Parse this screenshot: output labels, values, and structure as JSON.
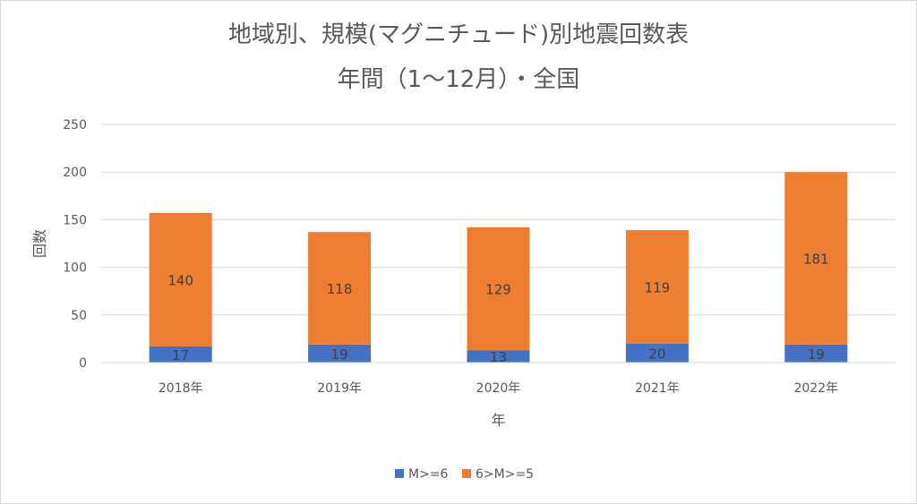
{
  "chart_data": {
    "type": "bar",
    "stacked": true,
    "title_line1": "地域別、規模(マグニチュード)別地震回数表",
    "title_line2": "年間（1〜12月）・全国",
    "xlabel": "年",
    "ylabel": "回数",
    "ylim": [
      0,
      250
    ],
    "yticks": [
      0,
      50,
      100,
      150,
      200,
      250
    ],
    "grid": true,
    "legend_position": "bottom",
    "categories": [
      "2018年",
      "2019年",
      "2020年",
      "2021年",
      "2022年"
    ],
    "series": [
      {
        "name": "M>=6",
        "color": "#4472C4",
        "values": [
          17,
          19,
          13,
          20,
          19
        ]
      },
      {
        "name": "6>M>=5",
        "color": "#ED7D31",
        "values": [
          140,
          118,
          129,
          119,
          181
        ]
      }
    ]
  }
}
